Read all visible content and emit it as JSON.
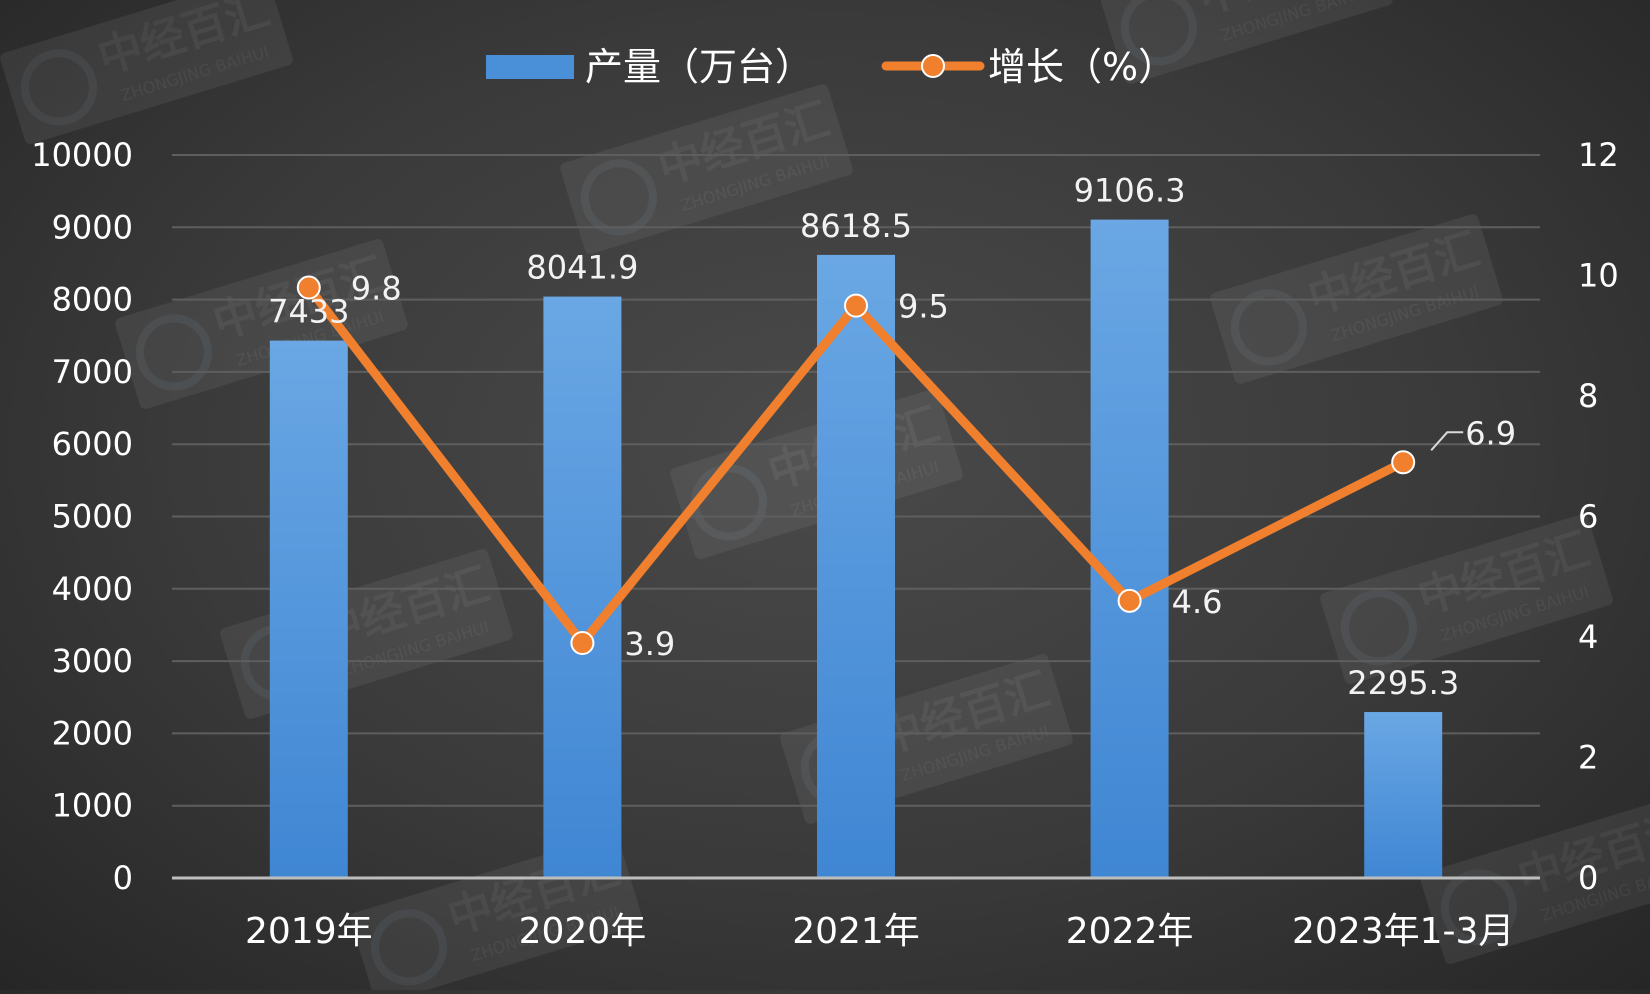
{
  "chart_data": {
    "type": "bar",
    "categories": [
      "2019年",
      "2020年",
      "2021年",
      "2022年",
      "2023年1-3月"
    ],
    "series": [
      {
        "name": "产量（万台）",
        "type": "bar",
        "axis": "left",
        "color": "#4a90d9",
        "values": [
          7433,
          8041.9,
          8618.5,
          9106.3,
          2295.3
        ],
        "labels": [
          "7433",
          "8041.9",
          "8618.5",
          "9106.3",
          "2295.3"
        ]
      },
      {
        "name": "增长（%）",
        "type": "line",
        "axis": "right",
        "color": "#f07f2e",
        "values": [
          9.8,
          3.9,
          9.5,
          4.6,
          6.9
        ],
        "labels": [
          "9.8",
          "3.9",
          "9.5",
          "4.6",
          "6.9"
        ]
      }
    ],
    "y_left": {
      "min": 0,
      "max": 10000,
      "ticks": [
        "0",
        "1000",
        "2000",
        "3000",
        "4000",
        "5000",
        "6000",
        "7000",
        "8000",
        "9000",
        "10000"
      ]
    },
    "y_right": {
      "min": 0,
      "max": 12,
      "ticks": [
        "0",
        "2",
        "4",
        "6",
        "8",
        "10",
        "12"
      ]
    },
    "grid": true,
    "legend_position": "top-center"
  },
  "watermark": {
    "text": "中经百汇",
    "subtext": "ZHONGJING BAIHUI"
  }
}
